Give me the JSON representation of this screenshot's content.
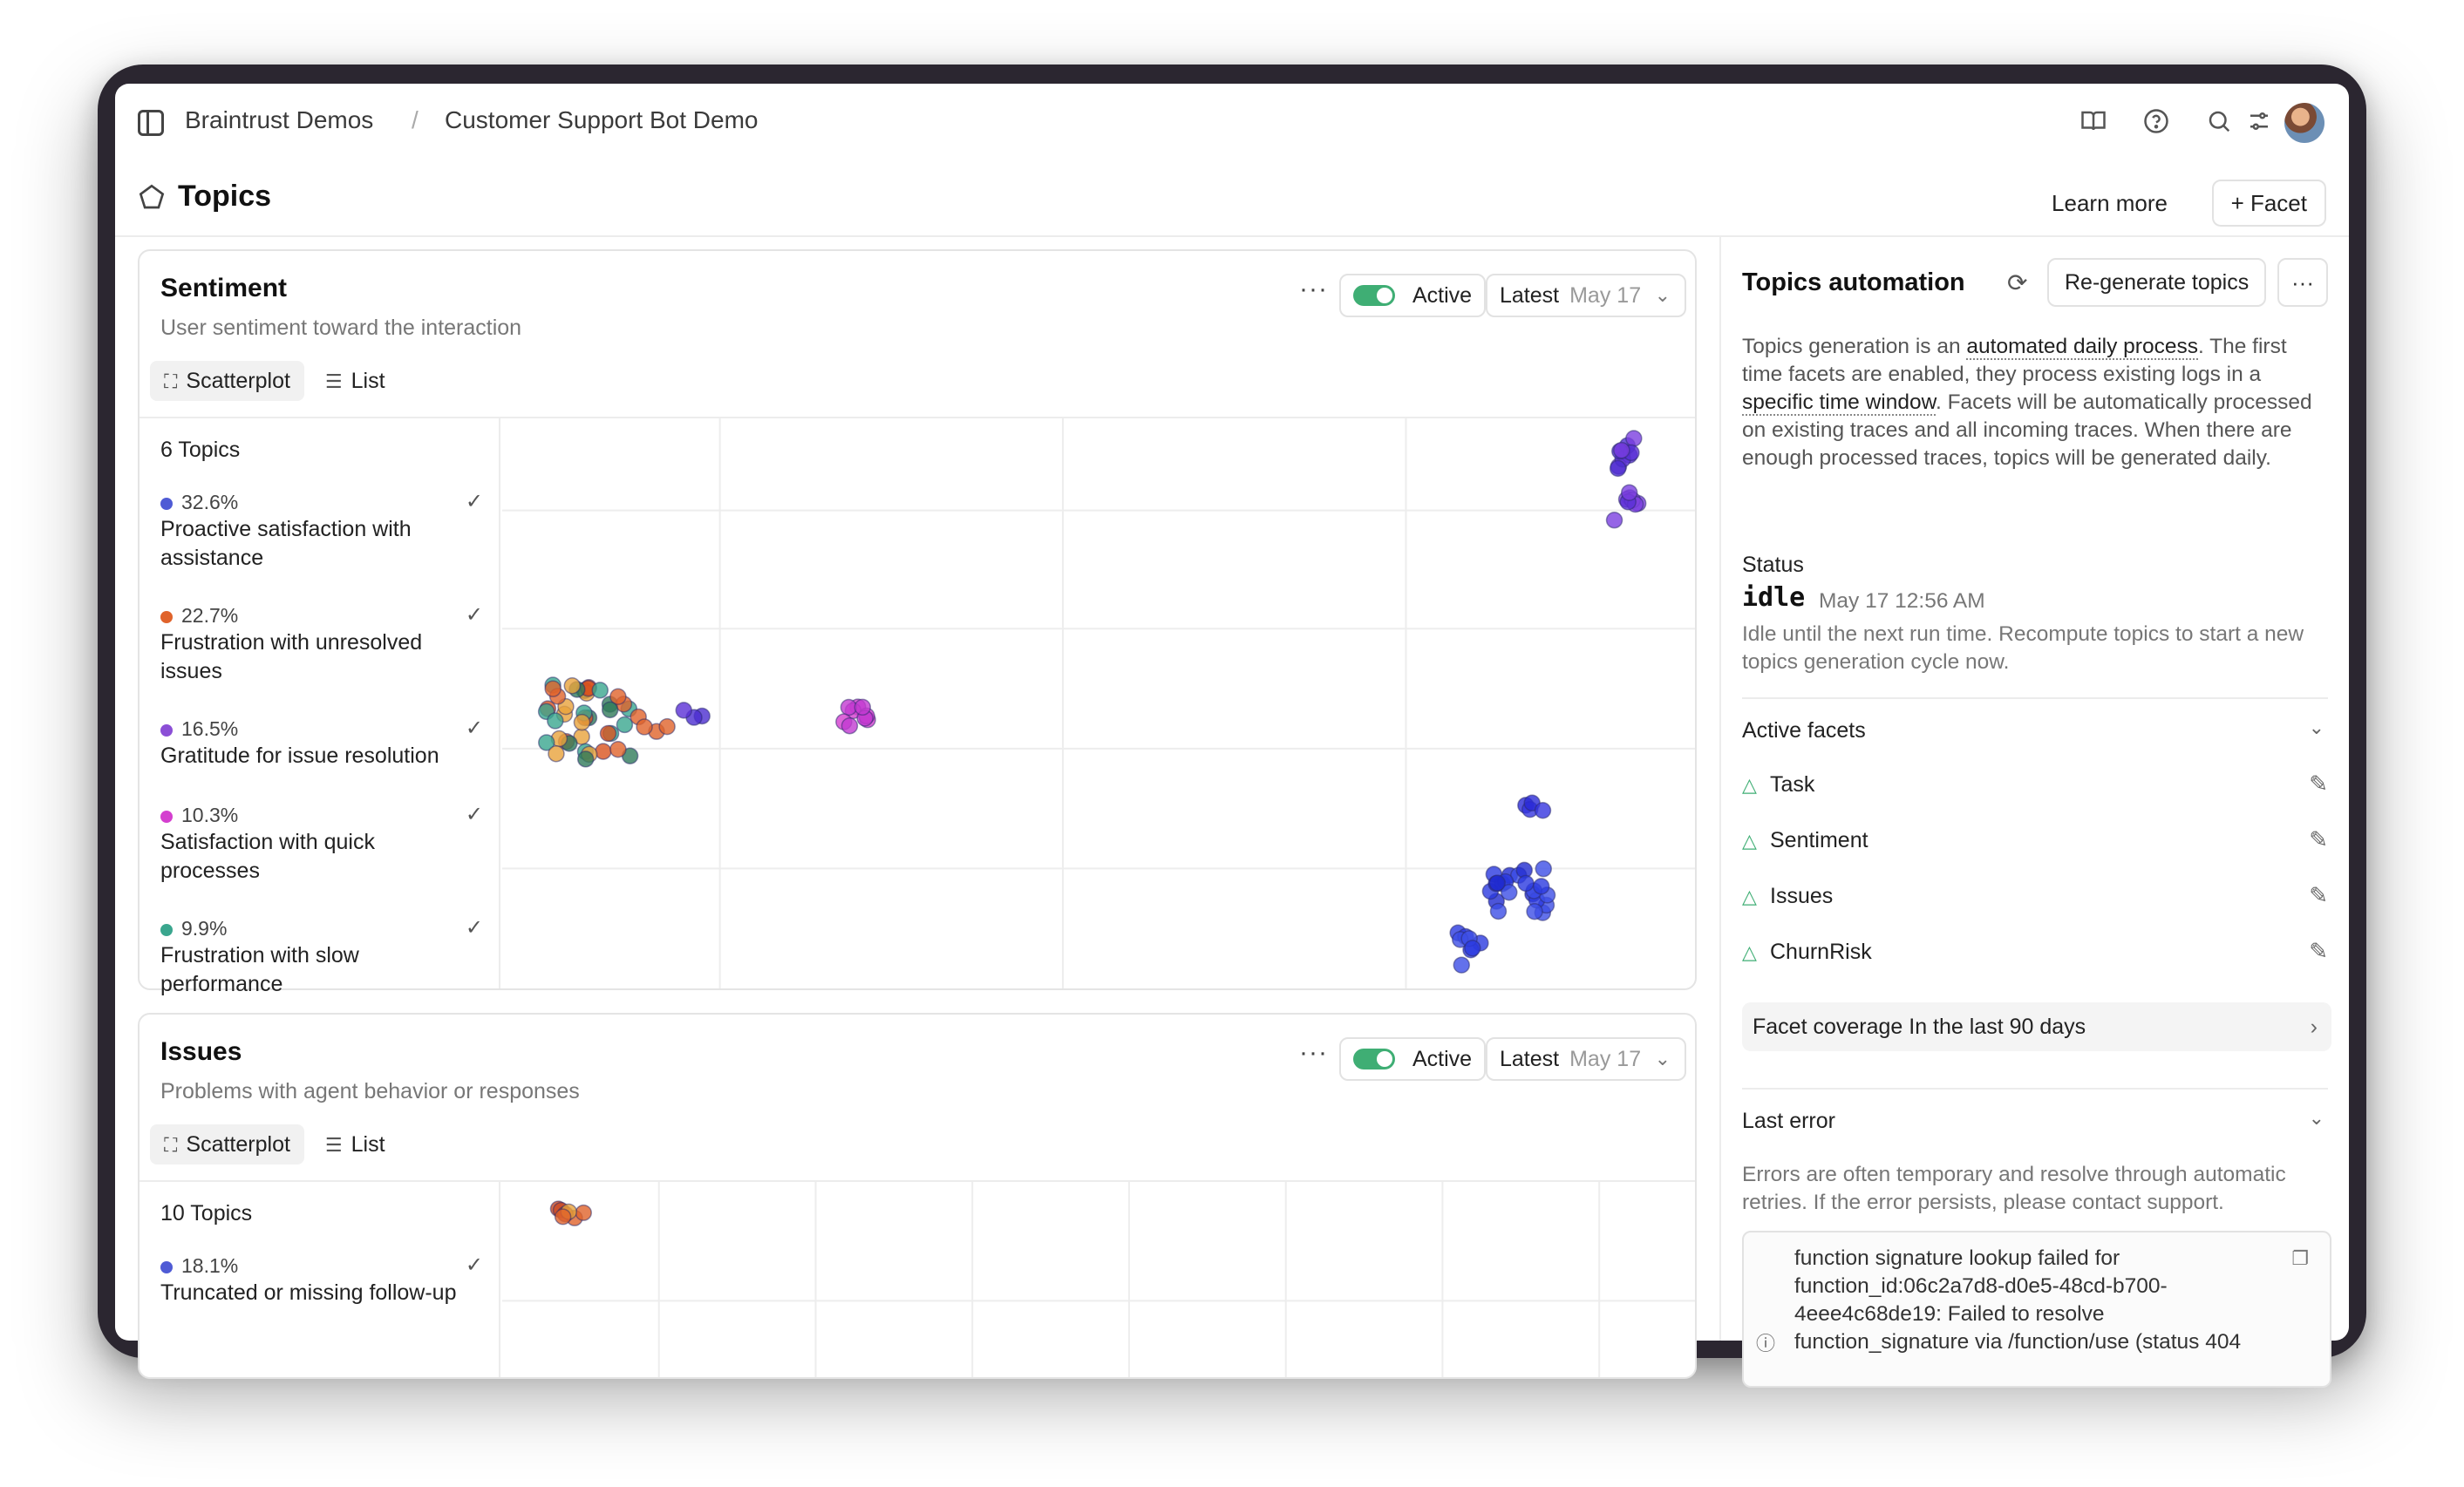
{
  "header": {
    "breadcrumb": [
      "Braintrust Demos",
      "Customer Support Bot Demo"
    ],
    "icons": [
      "sidebar-icon",
      "book-icon",
      "help-icon",
      "search-icon",
      "settings-icon"
    ]
  },
  "page": {
    "title": "Topics",
    "learn_more": "Learn more",
    "facet_button": "+ Facet"
  },
  "cards": [
    {
      "title": "Sentiment",
      "subtitle": "User sentiment toward the interaction",
      "active_label": "Active",
      "latest_label": "Latest",
      "latest_date": "May 17",
      "tabs": [
        "Scatterplot",
        "List"
      ],
      "topics_count": "6 Topics",
      "topics": [
        {
          "pct": "32.6%",
          "label": "Proactive satisfaction with assistance",
          "color": "#4f5bd5"
        },
        {
          "pct": "22.7%",
          "label": "Frustration with unresolved issues",
          "color": "#e0632b"
        },
        {
          "pct": "16.5%",
          "label": "Gratitude for issue resolution",
          "color": "#8b4fd6"
        },
        {
          "pct": "10.3%",
          "label": "Satisfaction with quick processes",
          "color": "#d43fcf"
        },
        {
          "pct": "9.9%",
          "label": "Frustration with slow performance",
          "color": "#3aa68e"
        }
      ]
    },
    {
      "title": "Issues",
      "subtitle": "Problems with agent behavior or responses",
      "active_label": "Active",
      "latest_label": "Latest",
      "latest_date": "May 17",
      "tabs": [
        "Scatterplot",
        "List"
      ],
      "topics_count": "10 Topics",
      "topics": [
        {
          "pct": "18.1%",
          "label": "Truncated or missing follow-up",
          "color": "#4f5bd5"
        }
      ]
    }
  ],
  "automation": {
    "title": "Topics automation",
    "regen_button": "Re-generate topics",
    "desc_1": "Topics generation is an ",
    "desc_link_1": "automated daily process",
    "desc_2": ". The first time facets are enabled, they process existing logs in a ",
    "desc_link_2": "specific time window",
    "desc_3": ". Facets will be automatically processed on existing traces and all incoming traces. When there are enough processed traces, topics will be generated daily.",
    "status_label": "Status",
    "status_value": "idle",
    "status_time": "May 17 12:56 AM",
    "status_desc": "Idle until the next run time. Recompute topics to start a new topics generation cycle now.",
    "active_facets_label": "Active facets",
    "facets": [
      "Task",
      "Sentiment",
      "Issues",
      "ChurnRisk"
    ],
    "coverage_label": "Facet coverage In the last 90 days",
    "last_error_label": "Last error",
    "error_desc": "Errors are often temporary and resolve through automatic retries. If the error persists, please contact support.",
    "error_message": "function signature lookup failed for function_id:06c2a7d8-d0e5-48cd-b700-4eee4c68de19: Failed to resolve function_signature via /function/use (status 404"
  }
}
